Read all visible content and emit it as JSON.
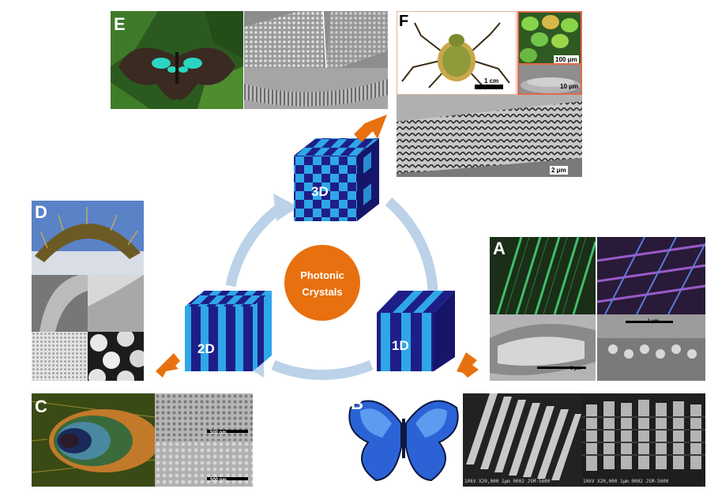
{
  "center": {
    "line1": "Photonic",
    "line2": "Crystals",
    "color": "#e8700f"
  },
  "cubes": {
    "oneD": "1D",
    "twoD": "2D",
    "threeD": "3D",
    "dark": "#1e1e88",
    "light": "#2fa6e8"
  },
  "colors": {
    "cycle_arrow": "#bcd2e8",
    "pointer_arrow": "#e8700f"
  },
  "panels": {
    "A": {
      "label": "A",
      "scale_bar": "5 μm",
      "scale_bar_small": "1 μm"
    },
    "B": {
      "label": "B",
      "sem_footer_1": "10kV  X20,000   1μm 0002 JSM-5600",
      "sem_footer_2": "10kV  X20,000   1μm 0002 JSM-5600"
    },
    "C": {
      "label": "C",
      "scale_bar_1": "500 nm",
      "scale_bar_2": "500 nm"
    },
    "D": {
      "label": "D"
    },
    "E": {
      "label": "E"
    },
    "F": {
      "label": "F",
      "scale_main": "1 cm",
      "scale_inset1": "100 μm",
      "scale_inset2": "10 μm",
      "scale_bottom": "2 μm"
    }
  }
}
